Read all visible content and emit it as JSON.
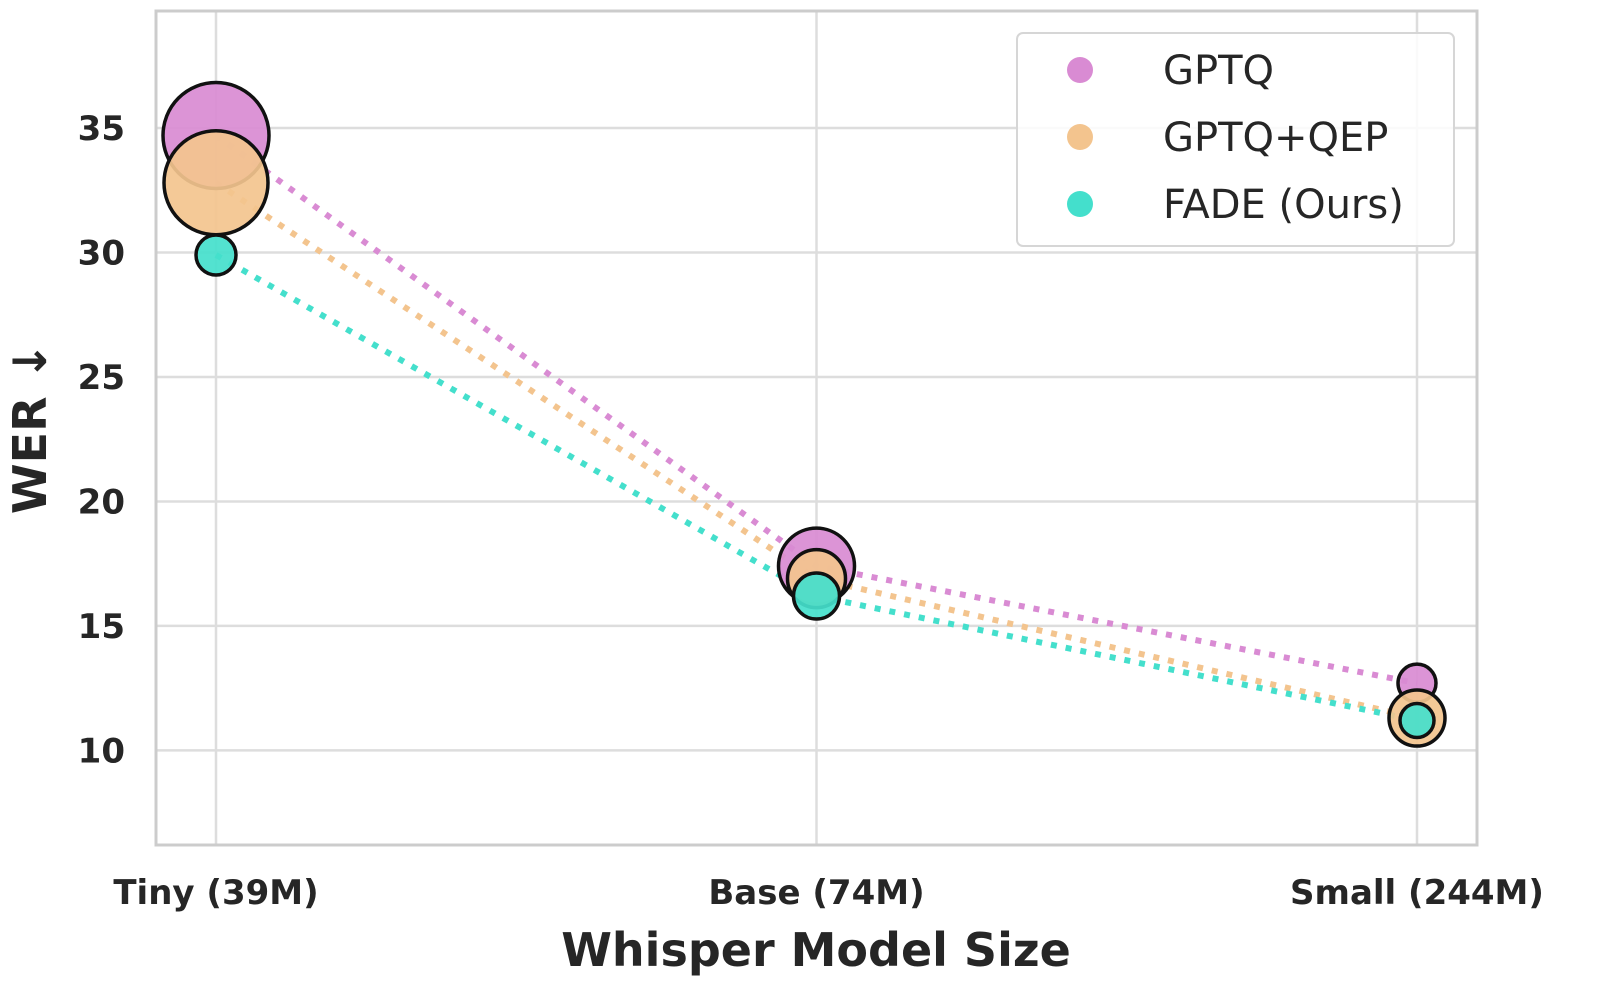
{
  "chart_data": {
    "type": "scatter",
    "title": "",
    "xlabel": "Whisper Model Size",
    "ylabel": "WER ↓",
    "categories": [
      "Tiny (39M)",
      "Base (74M)",
      "Small (244M)"
    ],
    "yticks": [
      10,
      15,
      20,
      25,
      30,
      35
    ],
    "ylim": [
      6.2,
      39.7
    ],
    "grid": true,
    "legend_position": "top-right",
    "series": [
      {
        "name": "GPTQ",
        "color": "#d98bd3",
        "values": [
          34.7,
          17.4,
          12.7
        ],
        "marker_size": [
          53,
          38,
          19
        ]
      },
      {
        "name": "GPTQ+QEP",
        "color": "#f3c48e",
        "values": [
          32.8,
          16.9,
          11.3
        ],
        "marker_size": [
          52,
          29,
          28
        ]
      },
      {
        "name": "FADE (Ours)",
        "color": "#44dfcc",
        "values": [
          29.9,
          16.2,
          11.2
        ],
        "marker_size": [
          20,
          23,
          17
        ]
      }
    ]
  }
}
